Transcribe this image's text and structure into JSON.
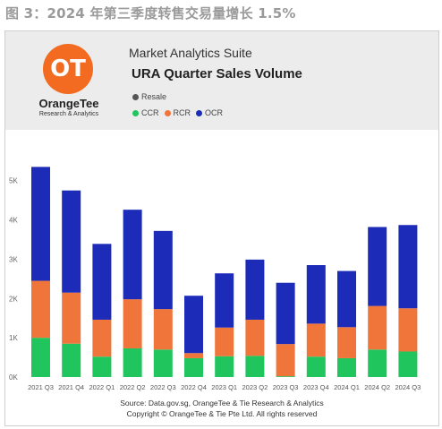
{
  "figure_title": "图 3：2024 年第三季度转售交易量增长 1.5%",
  "logo": {
    "mark": "OT",
    "name": "OrangeTee",
    "tagline": "Research & Analytics"
  },
  "suite": "Market Analytics Suite",
  "chart_title": "URA Quarter Sales Volume",
  "legend_resale": "Resale",
  "footer": {
    "source": "Source: Data.gov.sg, OrangeTee & Tie Research & Analytics",
    "copyright": "Copyright © OrangeTee & Tie Pte Ltd. All rights reserved"
  },
  "colors": {
    "CCR": "#21c55d",
    "RCR": "#f0753a",
    "OCR": "#1c2bb8",
    "resale_dot": "#555555"
  },
  "chart_data": {
    "type": "bar",
    "stacked": true,
    "categories": [
      "2021 Q3",
      "2021 Q4",
      "2022 Q1",
      "2022 Q2",
      "2022 Q3",
      "2022 Q4",
      "2023 Q1",
      "2023 Q2",
      "2023 Q3",
      "2023 Q4",
      "2024 Q1",
      "2024 Q2",
      "2024 Q3"
    ],
    "series": [
      {
        "name": "CCR",
        "values": [
          1000,
          850,
          520,
          730,
          700,
          480,
          530,
          540,
          20,
          520,
          480,
          700,
          650
        ]
      },
      {
        "name": "RCR",
        "values": [
          1450,
          1300,
          940,
          1250,
          1030,
          130,
          730,
          920,
          820,
          840,
          790,
          1110,
          1100
        ]
      },
      {
        "name": "OCR",
        "values": [
          2900,
          2600,
          1930,
          2280,
          1990,
          1460,
          1380,
          1530,
          1560,
          1490,
          1430,
          2010,
          2120
        ]
      }
    ],
    "yticks": [
      "0K",
      "1K",
      "2K",
      "3K",
      "4K",
      "5K"
    ],
    "ylim": [
      0,
      5700
    ],
    "grid": false,
    "legend_position": "top-left"
  }
}
